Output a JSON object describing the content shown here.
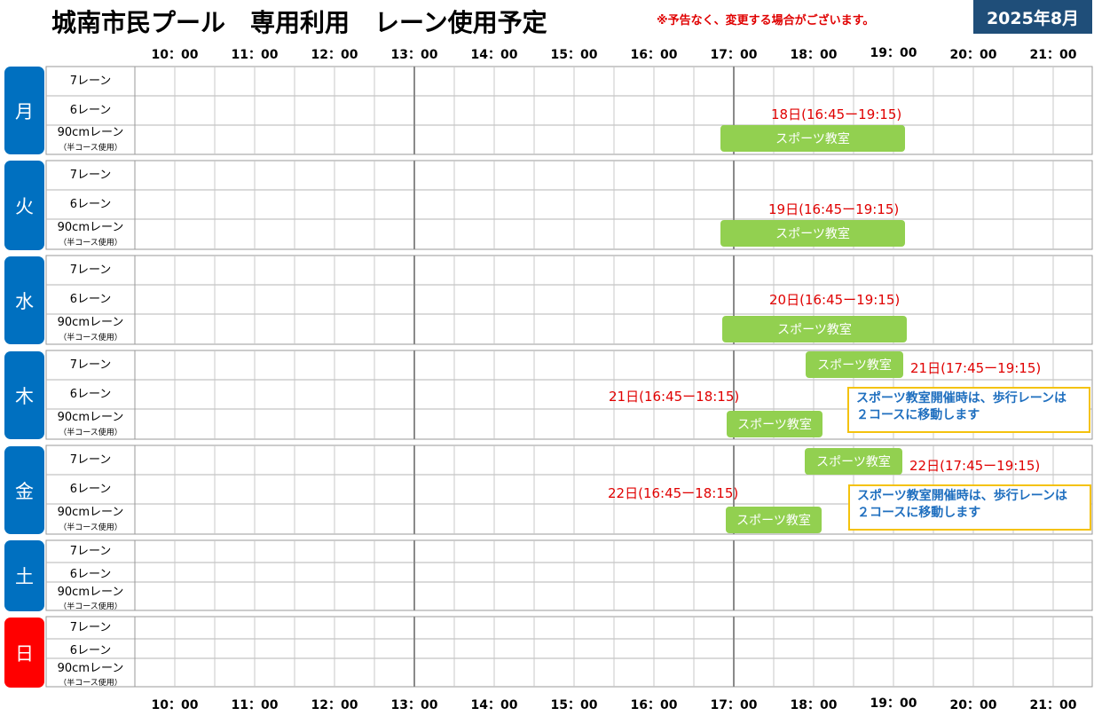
{
  "header": {
    "title": "城南市民プール　専用利用　レーン使用予定",
    "notice": "※予告なく、変更する場合がございます。",
    "month": "2025年8月"
  },
  "times": [
    "10：00",
    "11：00",
    "12：00",
    "13：00",
    "14：00",
    "15：00",
    "16：00",
    "17：00",
    "18：00",
    "19：00",
    "20：00",
    "21：00"
  ],
  "lanes": {
    "lane7": "7レーン",
    "lane6": "6レーン",
    "lane90": "90cmレーン",
    "lane90_sub": "（半コース使用）"
  },
  "days": [
    "月",
    "火",
    "水",
    "木",
    "金",
    "土",
    "日"
  ],
  "events": {
    "class_label": "スポーツ教室",
    "mon_note": "18日(16:45ー19:15)",
    "tue_note": "19日(16:45ー19:15)",
    "wed_note": "20日(16:45ー19:15)",
    "thu_note_a": "21日(17:45ー19:15)",
    "thu_note_b": "21日(16:45ー18:15)",
    "fri_note_a": "22日(17:45ー19:15)",
    "fri_note_b": "22日(16:45ー18:15)",
    "info_line1": "スポーツ教室開催時は、歩行レーンは",
    "info_line2": "２コースに移動します"
  },
  "colors": {
    "weekday_tab": "#0070c0",
    "sunday_tab": "#ff0000",
    "class_bar": "#92d050",
    "note_red": "#e00000",
    "info_border": "#f4c20d",
    "info_text": "#1f6fbf",
    "month_badge": "#1f4e79"
  }
}
